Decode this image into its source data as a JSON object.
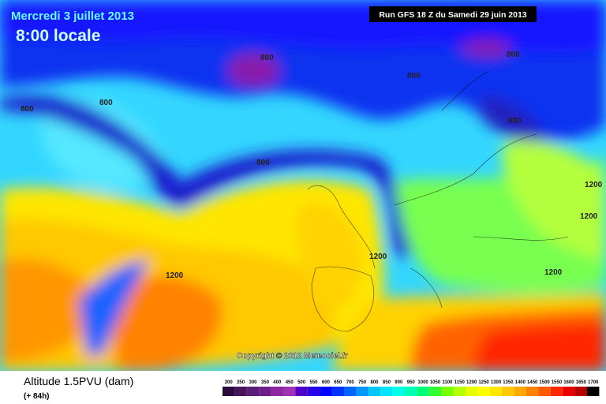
{
  "header": {
    "date": "Mercredi 3 juillet 2013",
    "time": "8:00 locale",
    "run": "Run GFS 18 Z du Samedi 29 juin 2013"
  },
  "map": {
    "contour_labels": [
      800,
      800,
      800,
      800,
      800,
      800,
      800,
      1200,
      1200,
      1200,
      1200,
      1200
    ],
    "copyright": "Copyright © 2012 Meteociel.fr"
  },
  "footer": {
    "title": "Altitude 1.5PVU (dam)",
    "lead": "(+ 84h)"
  },
  "scale": {
    "labels": [
      200,
      250,
      300,
      350,
      400,
      450,
      500,
      550,
      600,
      650,
      700,
      750,
      800,
      850,
      900,
      950,
      1000,
      1050,
      1100,
      1150,
      1200,
      1250,
      1300,
      1350,
      1400,
      1450,
      1500,
      1550,
      1600,
      1650,
      1700
    ],
    "colors": [
      "#2d0a3c",
      "#46145a",
      "#5a1e78",
      "#6e1e8c",
      "#8c28a0",
      "#a032b4",
      "#5000c8",
      "#2800e6",
      "#0000ff",
      "#0032ff",
      "#0064ff",
      "#0096ff",
      "#00c8ff",
      "#00e6ff",
      "#00ffe6",
      "#00ffb4",
      "#00ff78",
      "#32ff32",
      "#78ff00",
      "#b4ff00",
      "#e6ff00",
      "#ffff00",
      "#ffe600",
      "#ffc800",
      "#ffaa00",
      "#ff8200",
      "#ff5a00",
      "#ff2800",
      "#e60000",
      "#b40000",
      "#000000"
    ]
  }
}
